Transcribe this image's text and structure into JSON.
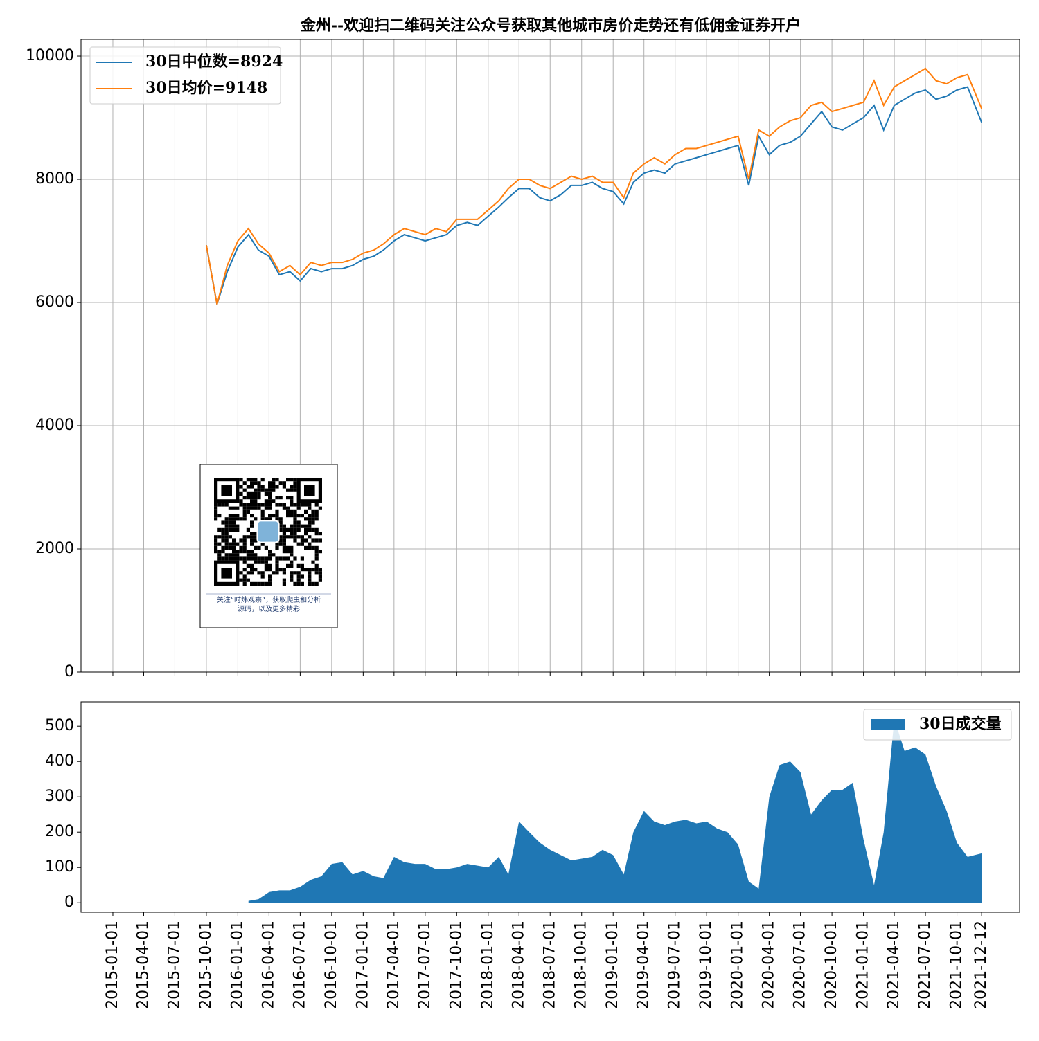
{
  "chart_data": [
    {
      "type": "line",
      "title": "金州--欢迎扫二维码关注公众号获取其他城市房价走势还有低佣金证券开户",
      "x": [
        "2015-10-01",
        "2015-11-01",
        "2015-12-01",
        "2016-01-01",
        "2016-02-01",
        "2016-03-01",
        "2016-04-01",
        "2016-05-01",
        "2016-06-01",
        "2016-07-01",
        "2016-08-01",
        "2016-09-01",
        "2016-10-01",
        "2016-11-01",
        "2016-12-01",
        "2017-01-01",
        "2017-02-01",
        "2017-03-01",
        "2017-04-01",
        "2017-05-01",
        "2017-06-01",
        "2017-07-01",
        "2017-08-01",
        "2017-09-01",
        "2017-10-01",
        "2017-11-01",
        "2017-12-01",
        "2018-01-01",
        "2018-02-01",
        "2018-03-01",
        "2018-04-01",
        "2018-05-01",
        "2018-06-01",
        "2018-07-01",
        "2018-08-01",
        "2018-09-01",
        "2018-10-01",
        "2018-11-01",
        "2018-12-01",
        "2019-01-01",
        "2019-02-01",
        "2019-03-01",
        "2019-04-01",
        "2019-05-01",
        "2019-06-01",
        "2019-07-01",
        "2019-08-01",
        "2019-09-01",
        "2019-10-01",
        "2019-11-01",
        "2019-12-01",
        "2020-01-01",
        "2020-02-01",
        "2020-03-01",
        "2020-04-01",
        "2020-05-01",
        "2020-06-01",
        "2020-07-01",
        "2020-08-01",
        "2020-09-01",
        "2020-10-01",
        "2020-11-01",
        "2020-12-01",
        "2021-01-01",
        "2021-02-01",
        "2021-03-01",
        "2021-04-01",
        "2021-05-01",
        "2021-06-01",
        "2021-07-01",
        "2021-08-01",
        "2021-09-01",
        "2021-10-01",
        "2021-11-01",
        "2021-12-12"
      ],
      "series": [
        {
          "name": "30日中位数=8924",
          "color": "#1f77b4",
          "values": [
            6930,
            5970,
            6500,
            6900,
            7100,
            6850,
            6750,
            6450,
            6500,
            6350,
            6550,
            6500,
            6550,
            6550,
            6600,
            6700,
            6750,
            6850,
            7000,
            7100,
            7050,
            7000,
            7050,
            7100,
            7250,
            7300,
            7250,
            7400,
            7550,
            7700,
            7850,
            7850,
            7700,
            7650,
            7750,
            7900,
            7900,
            7950,
            7850,
            7800,
            7600,
            7950,
            8100,
            8150,
            8100,
            8250,
            8300,
            8350,
            8400,
            8450,
            8500,
            8550,
            7900,
            8700,
            8400,
            8550,
            8600,
            8700,
            8900,
            9100,
            8850,
            8800,
            8900,
            9000,
            9200,
            8800,
            9200,
            9300,
            9400,
            9450,
            9300,
            9350,
            9450,
            9500,
            8924
          ]
        },
        {
          "name": "30日均价=9148",
          "color": "#ff7f0e",
          "values": [
            6930,
            5970,
            6600,
            7000,
            7200,
            6950,
            6800,
            6500,
            6600,
            6450,
            6650,
            6600,
            6650,
            6650,
            6700,
            6800,
            6850,
            6950,
            7100,
            7200,
            7150,
            7100,
            7200,
            7150,
            7350,
            7350,
            7350,
            7500,
            7650,
            7850,
            8000,
            8000,
            7900,
            7850,
            7950,
            8050,
            8000,
            8050,
            7950,
            7950,
            7700,
            8100,
            8250,
            8350,
            8250,
            8400,
            8500,
            8500,
            8550,
            8600,
            8650,
            8700,
            8000,
            8800,
            8700,
            8850,
            8950,
            9000,
            9200,
            9250,
            9100,
            9150,
            9200,
            9250,
            9600,
            9200,
            9500,
            9600,
            9700,
            9800,
            9600,
            9550,
            9650,
            9700,
            9148
          ]
        }
      ],
      "xlim": [
        "2014-09-30",
        "2022-04-02"
      ],
      "xticks": [
        "2015-01-01",
        "2015-04-01",
        "2015-07-01",
        "2015-10-01",
        "2016-01-01",
        "2016-04-01",
        "2016-07-01",
        "2016-10-01",
        "2017-01-01",
        "2017-04-01",
        "2017-07-01",
        "2017-10-01",
        "2018-01-01",
        "2018-04-01",
        "2018-07-01",
        "2018-10-01",
        "2019-01-01",
        "2019-04-01",
        "2019-07-01",
        "2019-10-01",
        "2020-01-01",
        "2020-04-01",
        "2020-07-01",
        "2020-10-01",
        "2021-01-01",
        "2021-04-01",
        "2021-07-01",
        "2021-10-01",
        "2021-12-12"
      ],
      "ylim": [
        0,
        10270
      ],
      "yticks": [
        0,
        2000,
        4000,
        6000,
        8000,
        10000
      ],
      "grid": true,
      "legend": "upper left",
      "qr_caption": [
        "关注“时炜观察”，获取爬虫和分析",
        "源码，以及更多精彩"
      ]
    },
    {
      "type": "area",
      "x": [
        "2015-10-01",
        "2015-11-01",
        "2015-12-01",
        "2016-01-01",
        "2016-02-01",
        "2016-03-01",
        "2016-04-01",
        "2016-05-01",
        "2016-06-01",
        "2016-07-01",
        "2016-08-01",
        "2016-09-01",
        "2016-10-01",
        "2016-11-01",
        "2016-12-01",
        "2017-01-01",
        "2017-02-01",
        "2017-03-01",
        "2017-04-01",
        "2017-05-01",
        "2017-06-01",
        "2017-07-01",
        "2017-08-01",
        "2017-09-01",
        "2017-10-01",
        "2017-11-01",
        "2017-12-01",
        "2018-01-01",
        "2018-02-01",
        "2018-03-01",
        "2018-04-01",
        "2018-05-01",
        "2018-06-01",
        "2018-07-01",
        "2018-08-01",
        "2018-09-01",
        "2018-10-01",
        "2018-11-01",
        "2018-12-01",
        "2019-01-01",
        "2019-02-01",
        "2019-03-01",
        "2019-04-01",
        "2019-05-01",
        "2019-06-01",
        "2019-07-01",
        "2019-08-01",
        "2019-09-01",
        "2019-10-01",
        "2019-11-01",
        "2019-12-01",
        "2020-01-01",
        "2020-02-01",
        "2020-03-01",
        "2020-04-01",
        "2020-05-01",
        "2020-06-01",
        "2020-07-01",
        "2020-08-01",
        "2020-09-01",
        "2020-10-01",
        "2020-11-01",
        "2020-12-01",
        "2021-01-01",
        "2021-02-01",
        "2021-03-01",
        "2021-04-01",
        "2021-05-01",
        "2021-06-01",
        "2021-07-01",
        "2021-08-01",
        "2021-09-01",
        "2021-10-01",
        "2021-11-01",
        "2021-12-12"
      ],
      "series": [
        {
          "name": "30日成交量",
          "color": "#1f77b4",
          "values": [
            null,
            null,
            null,
            null,
            5,
            10,
            30,
            35,
            35,
            45,
            65,
            75,
            110,
            115,
            80,
            90,
            75,
            70,
            130,
            115,
            110,
            110,
            95,
            95,
            100,
            110,
            105,
            100,
            130,
            80,
            230,
            200,
            170,
            150,
            135,
            120,
            125,
            130,
            150,
            135,
            80,
            200,
            260,
            230,
            220,
            230,
            235,
            225,
            230,
            210,
            200,
            165,
            60,
            40,
            300,
            390,
            400,
            370,
            250,
            290,
            320,
            320,
            340,
            180,
            50,
            200,
            520,
            430,
            440,
            420,
            330,
            260,
            170,
            130,
            140
          ]
        }
      ],
      "xlim": [
        "2014-09-30",
        "2022-04-02"
      ],
      "xticks": [
        "2015-01-01",
        "2015-04-01",
        "2015-07-01",
        "2015-10-01",
        "2016-01-01",
        "2016-04-01",
        "2016-07-01",
        "2016-10-01",
        "2017-01-01",
        "2017-04-01",
        "2017-07-01",
        "2017-10-01",
        "2018-01-01",
        "2018-04-01",
        "2018-07-01",
        "2018-10-01",
        "2019-01-01",
        "2019-04-01",
        "2019-07-01",
        "2019-10-01",
        "2020-01-01",
        "2020-04-01",
        "2020-07-01",
        "2020-10-01",
        "2021-01-01",
        "2021-04-01",
        "2021-07-01",
        "2021-10-01",
        "2021-12-12"
      ],
      "ylim": [
        -27,
        569
      ],
      "yticks": [
        0,
        100,
        200,
        300,
        400,
        500
      ],
      "grid": false,
      "legend": "upper right"
    }
  ]
}
